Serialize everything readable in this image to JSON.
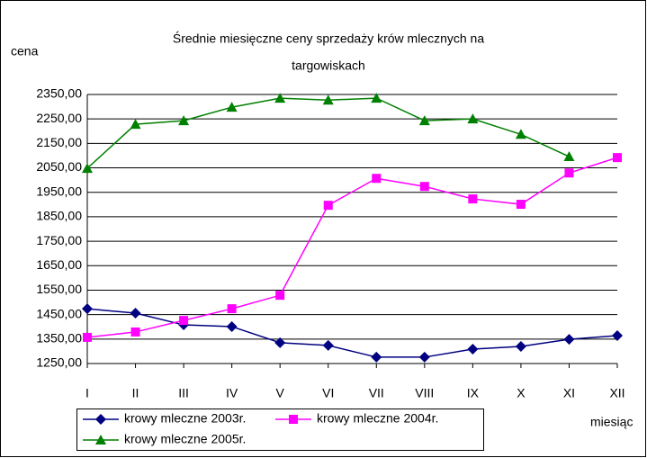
{
  "chart_data": {
    "type": "line",
    "title": "Średnie miesięczne ceny sprzedaży krów mlecznych na targowiskach",
    "title_lines": [
      "Średnie miesięczne ceny sprzedaży krów mlecznych na",
      "targowiskach"
    ],
    "y_label": "cena",
    "x_label": "miesiąc",
    "categories": [
      "I",
      "II",
      "III",
      "IV",
      "V",
      "VI",
      "VII",
      "VIII",
      "IX",
      "X",
      "XI",
      "XII"
    ],
    "series": [
      {
        "name": "krowy mleczne 2003r.",
        "color": "#000080",
        "marker": "diamond",
        "values": [
          1474,
          1456,
          1408,
          1401,
          1335,
          1324,
          1276,
          1276,
          1309,
          1320,
          1349,
          1364
        ]
      },
      {
        "name": "krowy mleczne 2004r.",
        "color": "#ff00ff",
        "marker": "square",
        "values": [
          1357,
          1379,
          1426,
          1474,
          1529,
          1897,
          2007,
          1974,
          1923,
          1901,
          2029,
          2092
        ]
      },
      {
        "name": "krowy mleczne 2005r.",
        "color": "#008000",
        "marker": "triangle",
        "values": [
          2048,
          2228,
          2243,
          2298,
          2335,
          2327,
          2335,
          2243,
          2250,
          2187,
          2096,
          null
        ]
      }
    ],
    "ylim": [
      1250,
      2350
    ],
    "yticks": [
      {
        "value": 1250,
        "label": "1250,00"
      },
      {
        "value": 1350,
        "label": "1350,00"
      },
      {
        "value": 1450,
        "label": "1450,00"
      },
      {
        "value": 1550,
        "label": "1550,00"
      },
      {
        "value": 1650,
        "label": "1650,00"
      },
      {
        "value": 1750,
        "label": "1750,00"
      },
      {
        "value": 1850,
        "label": "1850,00"
      },
      {
        "value": 1950,
        "label": "1950,00"
      },
      {
        "value": 2050,
        "label": "2050,00"
      },
      {
        "value": 2150,
        "label": "2150,00"
      },
      {
        "value": 2250,
        "label": "2250,00"
      },
      {
        "value": 2350,
        "label": "2350,00"
      }
    ],
    "grid": true
  }
}
